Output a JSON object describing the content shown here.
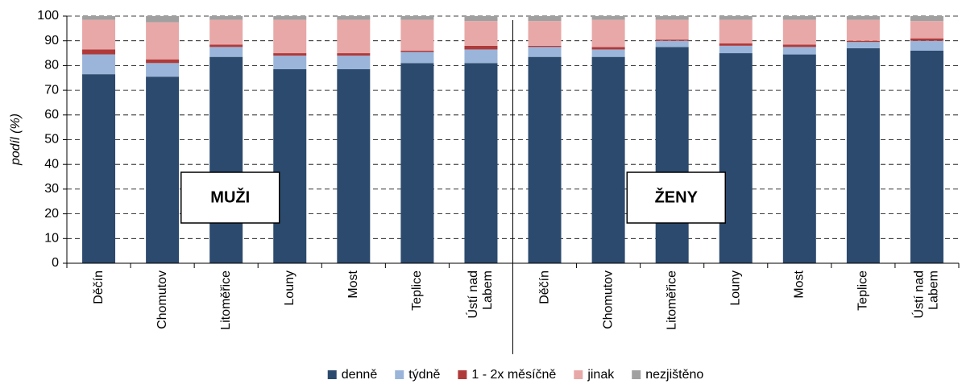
{
  "chart_data": {
    "type": "stacked_bar",
    "ylabel": "podíl (%)",
    "categories": [
      "Děčín",
      "Chomutov",
      "Litoměřice",
      "Louny",
      "Most",
      "Teplice",
      "Ústí nad Labem",
      "Děčín",
      "Chomutov",
      "Litoměřice",
      "Louny",
      "Most",
      "Teplice",
      "Ústí nad Labem"
    ],
    "series": [
      {
        "name": "denně",
        "color": "#2c4a6e",
        "values": [
          76.5,
          75.5,
          83.5,
          78.5,
          78.5,
          81,
          81,
          83.5,
          83.5,
          87.5,
          85,
          84.5,
          87,
          86
        ]
      },
      {
        "name": "týdně",
        "color": "#9ab5d9",
        "values": [
          8,
          5.5,
          4,
          5.5,
          5.5,
          4.5,
          5.5,
          4,
          3,
          2.5,
          3,
          3,
          2.5,
          4
        ]
      },
      {
        "name": "1 - 2x měsíčně",
        "color": "#b03a3a",
        "values": [
          2,
          1.5,
          1,
          1,
          1,
          0.5,
          1.5,
          0.5,
          1,
          0.5,
          1,
          1,
          0.5,
          1
        ]
      },
      {
        "name": "jinak",
        "color": "#e8a8a8",
        "values": [
          12,
          15,
          10,
          13.5,
          13.5,
          12.5,
          10,
          10,
          11,
          8,
          9.5,
          10,
          8.5,
          7
        ]
      },
      {
        "name": "nezjištěno",
        "color": "#a0a0a0",
        "values": [
          1.5,
          2.5,
          1.5,
          1.5,
          1.5,
          1.5,
          2,
          2,
          1.5,
          1.5,
          1.5,
          1.5,
          1.5,
          2
        ]
      }
    ],
    "annotations": [
      "MUŽI",
      "ŽENY"
    ],
    "ylim": [
      0,
      100
    ],
    "yticks": [
      0,
      10,
      20,
      30,
      40,
      50,
      60,
      70,
      80,
      90,
      100
    ],
    "grid": true
  }
}
